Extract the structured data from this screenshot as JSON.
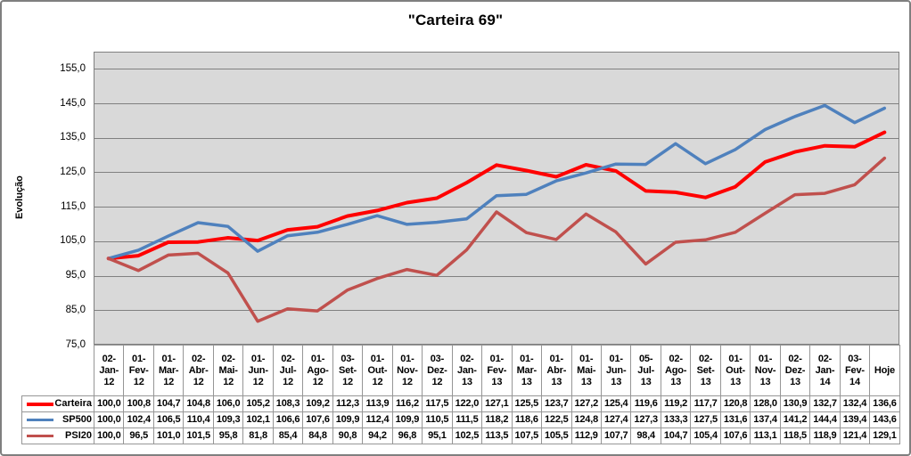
{
  "chart_data": {
    "type": "line",
    "title": "\"Carteira 69\"",
    "xlabel": "",
    "ylabel": "Evolução",
    "ylim": [
      75,
      160
    ],
    "yticks": [
      155,
      145,
      135,
      125,
      115,
      105,
      95,
      85,
      75
    ],
    "decimal_separator": ",",
    "grid": "horizontal-only",
    "gridline_color": "#808080",
    "plot_background": "#D9D9D9",
    "legend_position": "data-table-left",
    "categories": [
      "02-Jan-12",
      "01-Fev-12",
      "01-Mar-12",
      "02-Abr-12",
      "02-Mai-12",
      "01-Jun-12",
      "02-Jul-12",
      "01-Ago-12",
      "03-Set-12",
      "01-Out-12",
      "01-Nov-12",
      "03-Dez-12",
      "02-Jan-13",
      "01-Fev-13",
      "01-Mar-13",
      "01-Abr-13",
      "01-Mai-13",
      "01-Jun-13",
      "05-Jul-13",
      "02-Ago-13",
      "02-Set-13",
      "01-Out-13",
      "01-Nov-13",
      "02-Dez-13",
      "02-Jan-14",
      "03-Fev-14",
      "Hoje"
    ],
    "series": [
      {
        "name": "Carteira",
        "color": "#FF0000",
        "values": [
          100.0,
          100.8,
          104.7,
          104.8,
          106.0,
          105.2,
          108.3,
          109.2,
          112.3,
          113.9,
          116.2,
          117.5,
          122.0,
          127.1,
          125.5,
          123.7,
          127.2,
          125.4,
          119.6,
          119.2,
          117.7,
          120.8,
          128.0,
          130.9,
          132.7,
          132.4,
          136.6
        ]
      },
      {
        "name": "SP500",
        "color": "#4F81BD",
        "values": [
          100.0,
          102.4,
          106.5,
          110.4,
          109.3,
          102.1,
          106.6,
          107.6,
          109.9,
          112.4,
          109.9,
          110.5,
          111.5,
          118.2,
          118.6,
          122.5,
          124.8,
          127.4,
          127.3,
          133.3,
          127.5,
          131.6,
          137.4,
          141.2,
          144.4,
          139.4,
          143.6
        ]
      },
      {
        "name": "PSI20",
        "color": "#C0504D",
        "values": [
          100.0,
          96.5,
          101.0,
          101.5,
          95.8,
          81.8,
          85.4,
          84.8,
          90.8,
          94.2,
          96.8,
          95.1,
          102.5,
          113.5,
          107.5,
          105.5,
          112.9,
          107.7,
          98.4,
          104.7,
          105.4,
          107.6,
          113.1,
          118.5,
          118.9,
          121.4,
          129.1
        ]
      }
    ]
  }
}
